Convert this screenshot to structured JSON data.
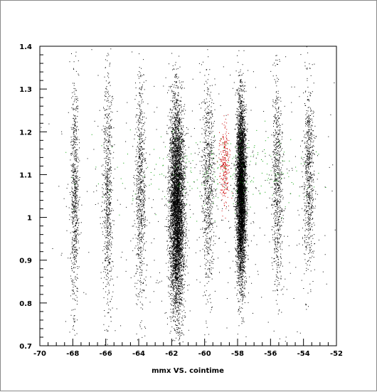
{
  "chart_data": {
    "type": "scatter",
    "title": "",
    "xlabel": "mmx VS. cointime",
    "ylabel": "",
    "xlim": [
      -70,
      -52
    ],
    "ylim": [
      0.7,
      1.4
    ],
    "grid": false,
    "legend": "none",
    "x_ticks": [
      "-70",
      "-68",
      "-66",
      "-64",
      "-62",
      "-60",
      "-58",
      "-56",
      "-54",
      "-52"
    ],
    "y_ticks": [
      "0.7",
      "0.8",
      "0.9",
      "1",
      "1.1",
      "1.2",
      "1.3",
      "1.4"
    ],
    "series": [
      {
        "color": "#000000",
        "clusters": [
          {
            "x": -67.9,
            "y": 1.05,
            "sx": 0.12,
            "sy": 0.14,
            "slope": 0,
            "n": 700
          },
          {
            "x": -65.9,
            "y": 1.05,
            "sx": 0.14,
            "sy": 0.14,
            "slope": 0,
            "n": 700
          },
          {
            "x": -63.9,
            "y": 1.06,
            "sx": 0.16,
            "sy": 0.13,
            "slope": 0,
            "n": 750
          },
          {
            "x": -61.7,
            "y": 1.02,
            "sx": 0.22,
            "sy": 0.12,
            "slope": 0.004,
            "n": 9000
          },
          {
            "x": -59.8,
            "y": 1.08,
            "sx": 0.18,
            "sy": 0.12,
            "slope": 0,
            "n": 750
          },
          {
            "x": -57.8,
            "y": 1.06,
            "sx": 0.14,
            "sy": 0.1,
            "slope": 0,
            "n": 11000
          },
          {
            "x": -55.6,
            "y": 1.07,
            "sx": 0.16,
            "sy": 0.12,
            "slope": 0,
            "n": 700
          },
          {
            "x": -53.7,
            "y": 1.1,
            "sx": 0.16,
            "sy": 0.11,
            "slope": 0,
            "n": 700
          },
          {
            "x": -60.5,
            "y": 1.05,
            "sx": 4.5,
            "sy": 0.15,
            "slope": 0,
            "n": 500
          }
        ]
      },
      {
        "color": "#cc0000",
        "clusters": [
          {
            "x": -58.8,
            "y": 1.12,
            "sx": 0.15,
            "sy": 0.05,
            "slope": 0,
            "n": 260
          }
        ]
      },
      {
        "color": "#00a000",
        "clusters": [
          {
            "x": -61.2,
            "y": 1.1,
            "sx": 2.8,
            "sy": 0.05,
            "slope": 0,
            "n": 140
          },
          {
            "x": -57.0,
            "y": 1.12,
            "sx": 2.2,
            "sy": 0.05,
            "slope": 0,
            "n": 110
          }
        ]
      }
    ]
  }
}
